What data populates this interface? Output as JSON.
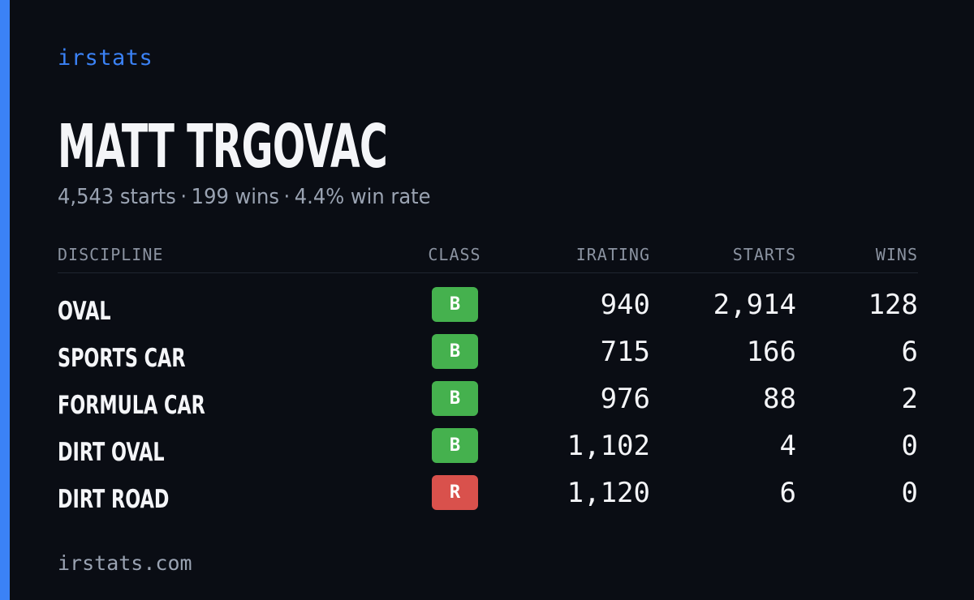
{
  "brand": "irstats",
  "driver": {
    "name": "MATT TRGOVAC",
    "starts_text": "4,543 starts",
    "wins_text": "199 wins",
    "win_rate_text": "4.4% win rate",
    "separator": "·"
  },
  "table": {
    "headers": {
      "discipline": "DISCIPLINE",
      "class": "CLASS",
      "irating": "IRATING",
      "starts": "STARTS",
      "wins": "WINS"
    },
    "rows": [
      {
        "discipline": "OVAL",
        "class": "B",
        "irating": "940",
        "starts": "2,914",
        "wins": "128"
      },
      {
        "discipline": "SPORTS CAR",
        "class": "B",
        "irating": "715",
        "starts": "166",
        "wins": "6"
      },
      {
        "discipline": "FORMULA CAR",
        "class": "B",
        "irating": "976",
        "starts": "88",
        "wins": "2"
      },
      {
        "discipline": "DIRT OVAL",
        "class": "B",
        "irating": "1,102",
        "starts": "4",
        "wins": "0"
      },
      {
        "discipline": "DIRT ROAD",
        "class": "R",
        "irating": "1,120",
        "starts": "6",
        "wins": "0"
      }
    ]
  },
  "colors": {
    "accent": "#3b82f6",
    "class_b": "#45b14e",
    "class_r": "#d9514c",
    "background": "#0a0d14"
  },
  "footer": "irstats.com"
}
